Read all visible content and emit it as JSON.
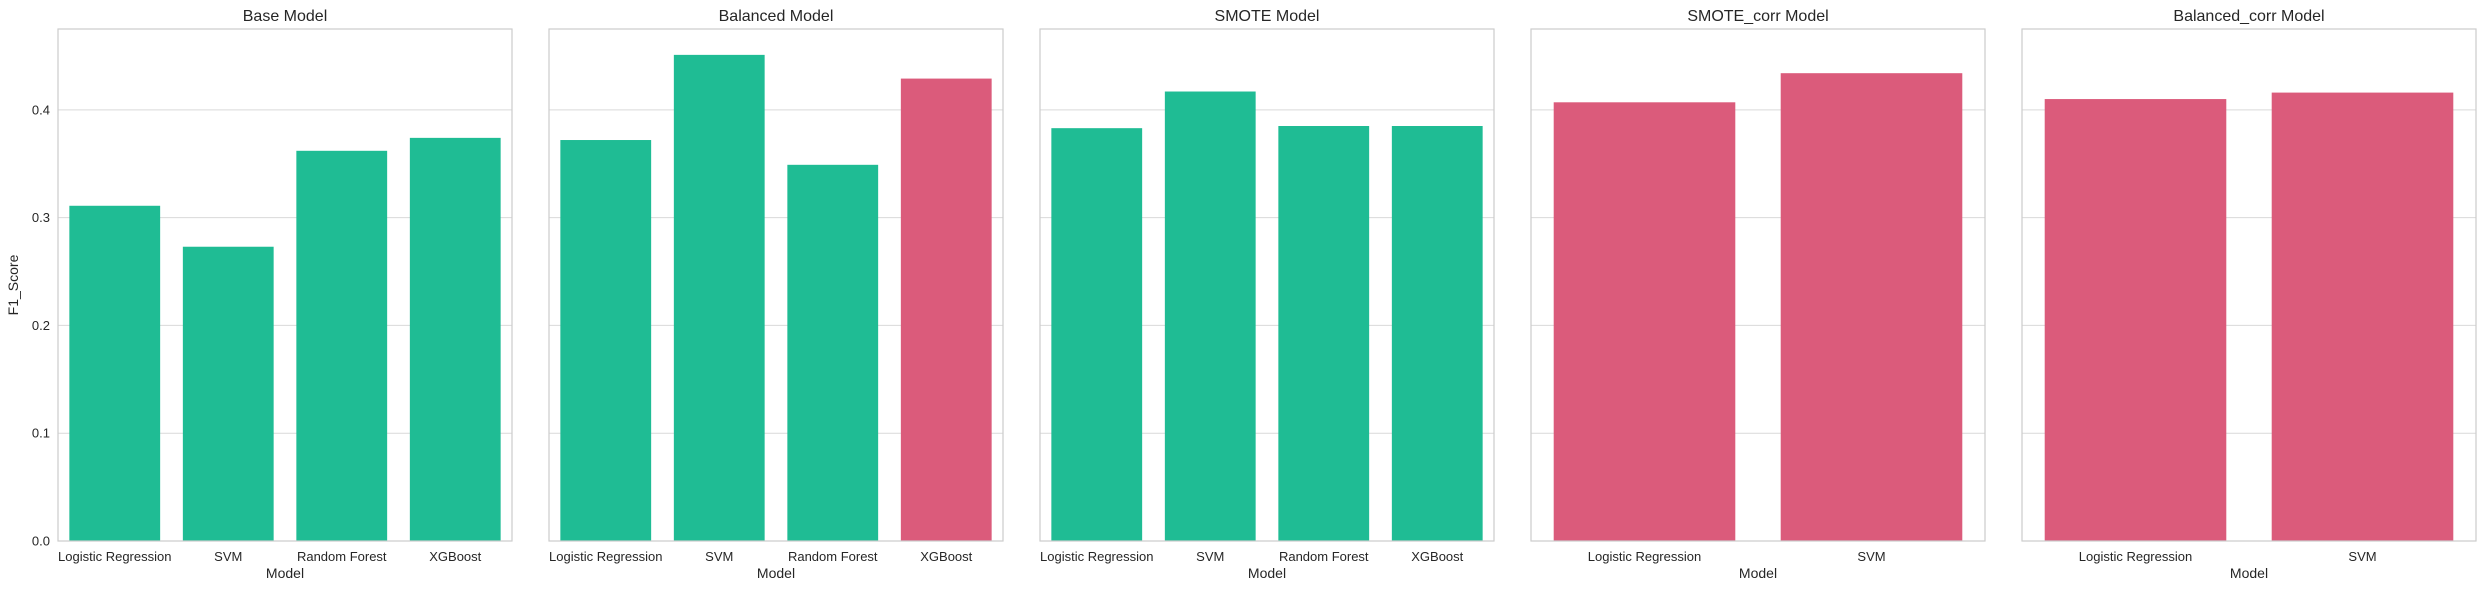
{
  "colors": {
    "teal": "#1fbc94",
    "pink": "#db5b7b",
    "grid": "#d9d9d9",
    "frame": "#cccccc",
    "text": "#262626"
  },
  "shared": {
    "ylabel": "F1_Score",
    "xlabel": "Model",
    "yticks": [
      "0.0",
      "0.1",
      "0.2",
      "0.3",
      "0.4"
    ]
  },
  "chart_data": [
    {
      "type": "bar",
      "title": "Base Model",
      "xlabel": "Model",
      "ylabel": "F1_Score",
      "ylim": [
        0,
        0.475
      ],
      "grid": "y",
      "categories": [
        "Logistic Regression",
        "SVM",
        "Random Forest",
        "XGBoost"
      ],
      "values": [
        0.311,
        0.273,
        0.362,
        0.374
      ],
      "bar_colors": [
        "teal",
        "teal",
        "teal",
        "teal"
      ]
    },
    {
      "type": "bar",
      "title": "Balanced Model",
      "xlabel": "Model",
      "ylabel": "",
      "ylim": [
        0,
        0.475
      ],
      "grid": "y",
      "categories": [
        "Logistic Regression",
        "SVM",
        "Random Forest",
        "XGBoost"
      ],
      "values": [
        0.372,
        0.451,
        0.349,
        0.429
      ],
      "bar_colors": [
        "teal",
        "teal",
        "teal",
        "pink"
      ]
    },
    {
      "type": "bar",
      "title": "SMOTE Model",
      "xlabel": "Model",
      "ylabel": "",
      "ylim": [
        0,
        0.475
      ],
      "grid": "y",
      "categories": [
        "Logistic Regression",
        "SVM",
        "Random Forest",
        "XGBoost"
      ],
      "values": [
        0.383,
        0.417,
        0.385,
        0.385
      ],
      "bar_colors": [
        "teal",
        "teal",
        "teal",
        "teal"
      ]
    },
    {
      "type": "bar",
      "title": "SMOTE_corr Model",
      "xlabel": "Model",
      "ylabel": "",
      "ylim": [
        0,
        0.475
      ],
      "grid": "y",
      "categories": [
        "Logistic Regression",
        "SVM"
      ],
      "values": [
        0.407,
        0.434
      ],
      "bar_colors": [
        "pink",
        "pink"
      ]
    },
    {
      "type": "bar",
      "title": "Balanced_corr Model",
      "xlabel": "Model",
      "ylabel": "",
      "ylim": [
        0,
        0.475
      ],
      "grid": "y",
      "categories": [
        "Logistic Regression",
        "SVM"
      ],
      "values": [
        0.41,
        0.416
      ],
      "bar_colors": [
        "pink",
        "pink"
      ]
    }
  ]
}
